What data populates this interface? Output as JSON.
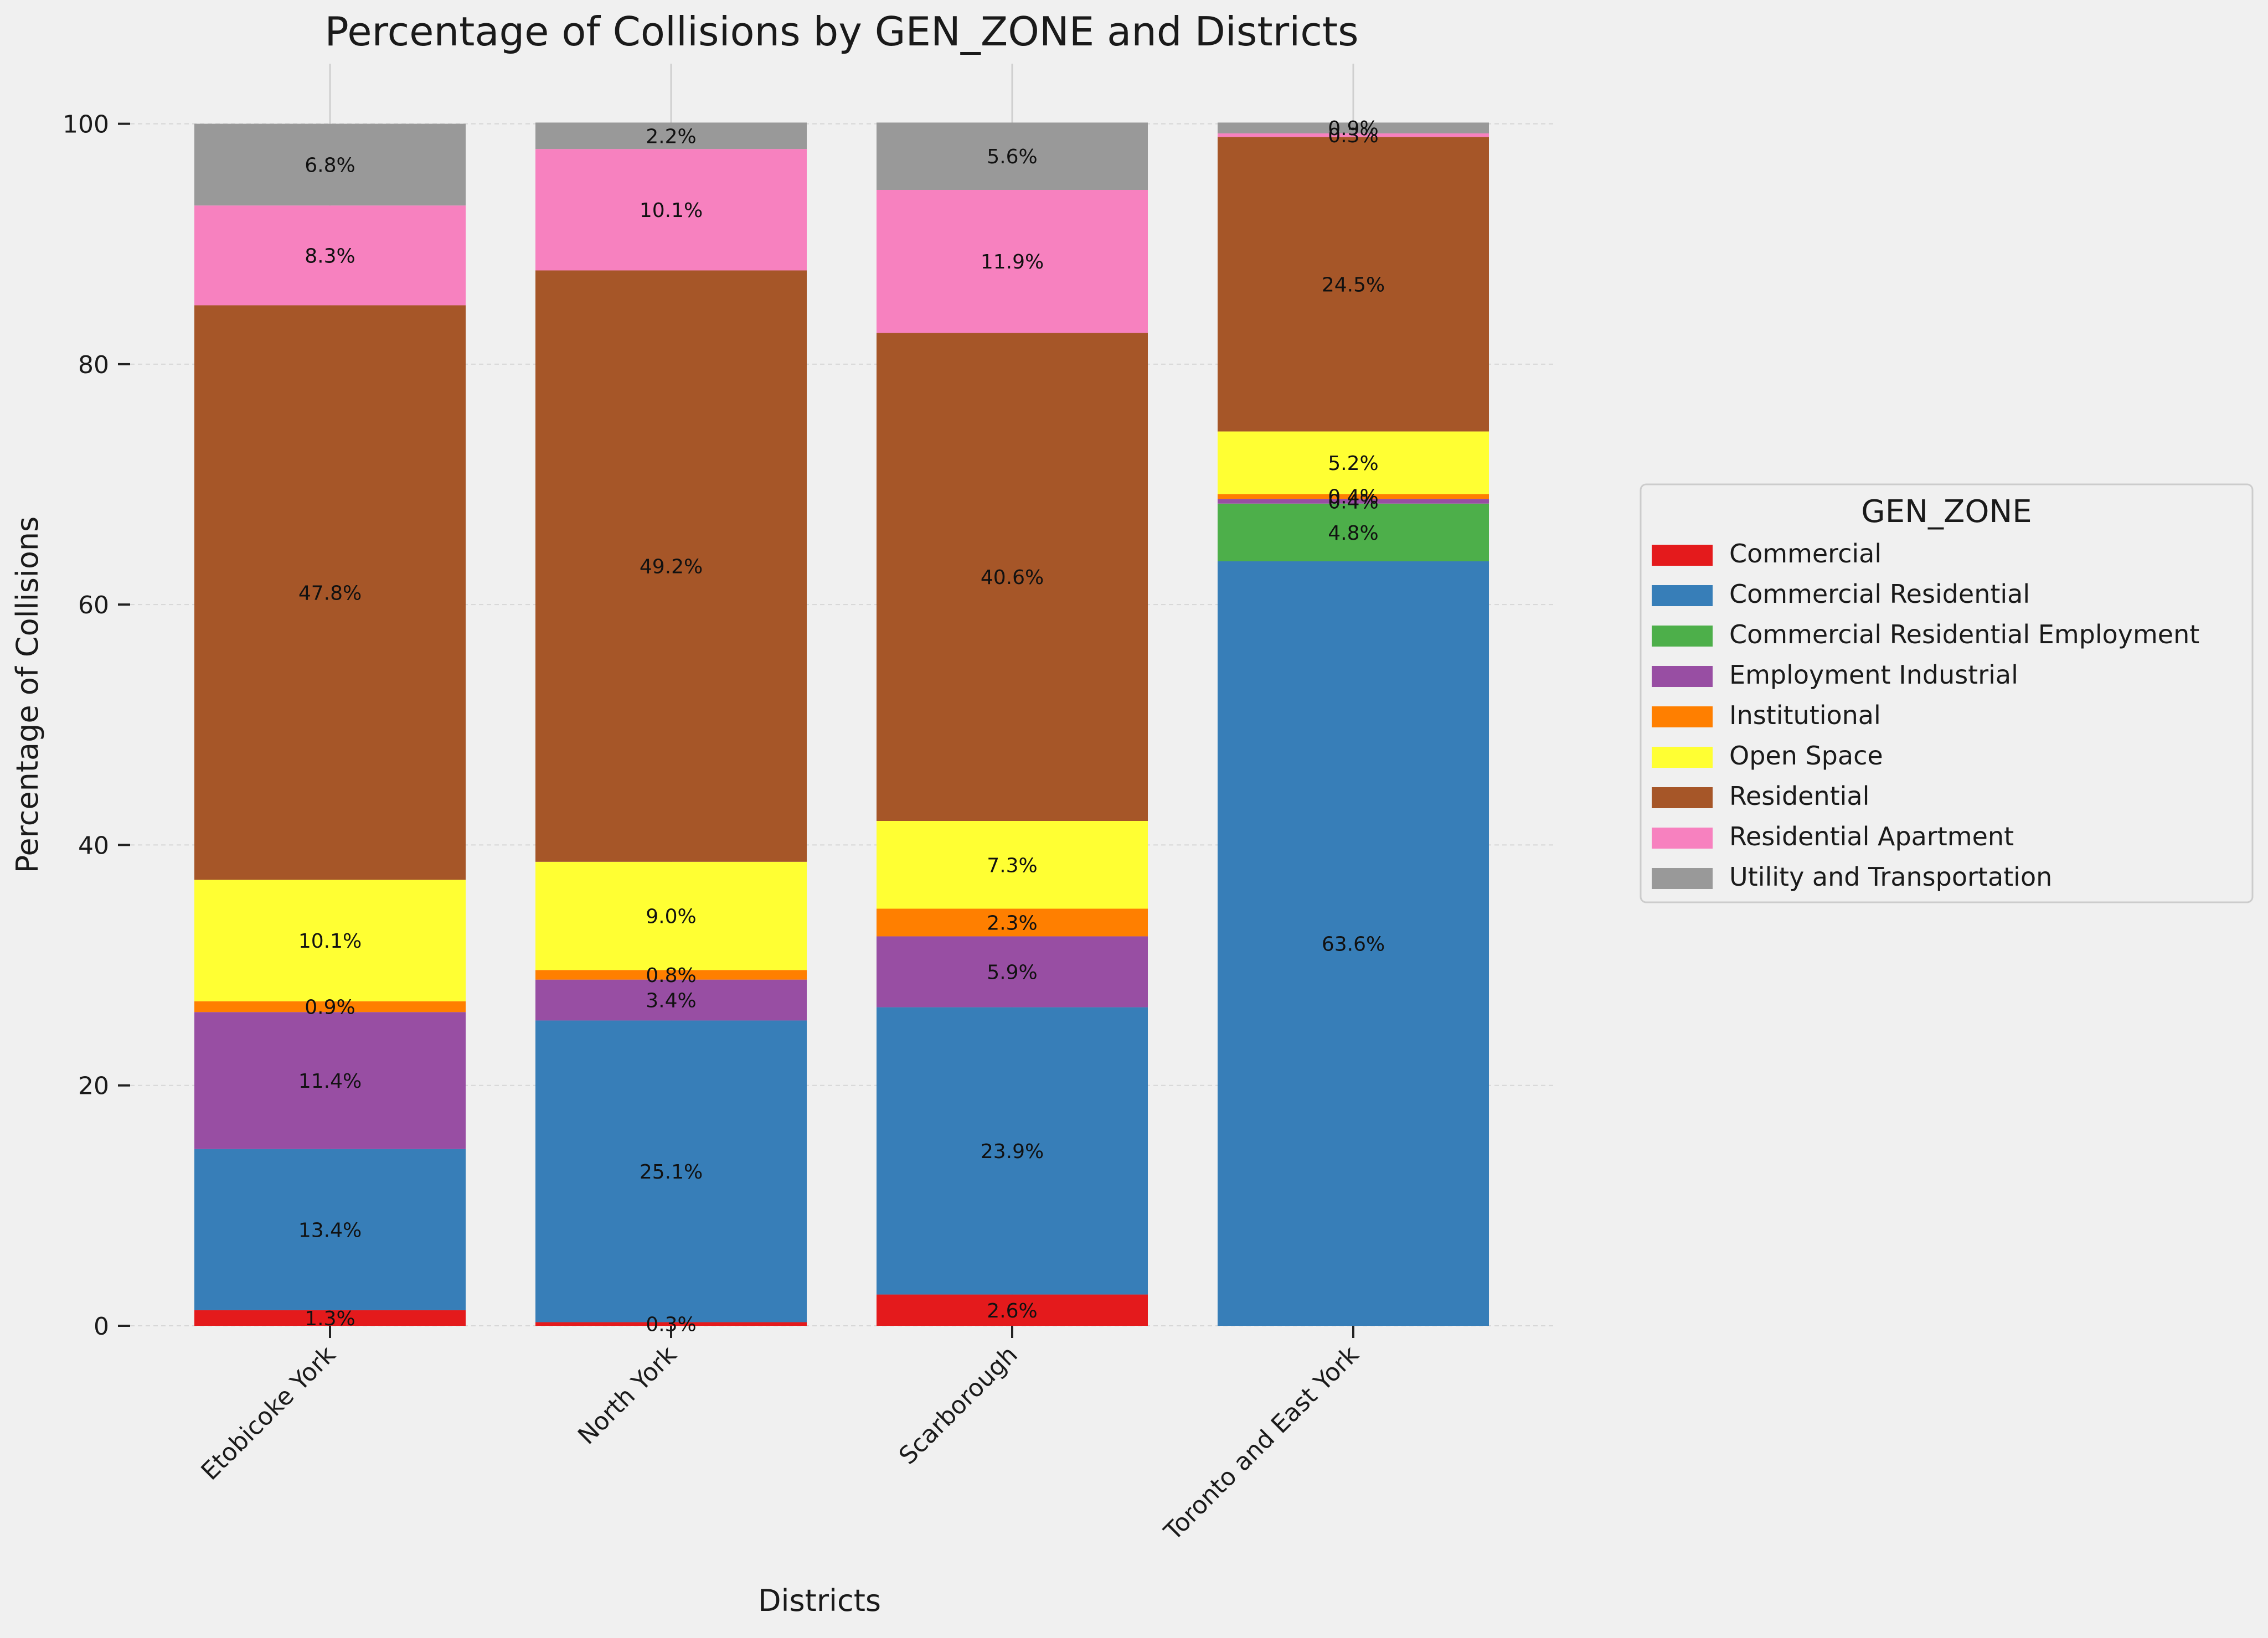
{
  "chart_data": {
    "type": "bar",
    "stacked": true,
    "title": "Percentage of Collisions by GEN_ZONE and Districts",
    "xlabel": "Districts",
    "ylabel": "Percentage of Collisions",
    "ylim": [
      0,
      105
    ],
    "yticks": [
      0,
      20,
      40,
      60,
      80,
      100
    ],
    "grid": true,
    "categories": [
      "Etobicoke York",
      "North York",
      "Scarborough",
      "Toronto and East York"
    ],
    "legend": {
      "title": "GEN_ZONE",
      "position": "right"
    },
    "series": [
      {
        "name": "Commercial",
        "color": "#e41a1c",
        "values": [
          1.3,
          0.3,
          2.6,
          0.0
        ],
        "labels": [
          "1.3%",
          "0.3%",
          "2.6%",
          ""
        ]
      },
      {
        "name": "Commercial Residential",
        "color": "#377eb8",
        "values": [
          13.4,
          25.1,
          23.9,
          63.6
        ],
        "labels": [
          "13.4%",
          "25.1%",
          "23.9%",
          "63.6%"
        ]
      },
      {
        "name": "Commercial Residential Employment",
        "color": "#4daf4a",
        "values": [
          0.0,
          0.0,
          0.0,
          4.8
        ],
        "labels": [
          "",
          "",
          "",
          "4.8%"
        ]
      },
      {
        "name": "Employment Industrial",
        "color": "#984ea3",
        "values": [
          11.4,
          3.4,
          5.9,
          0.4
        ],
        "labels": [
          "11.4%",
          "3.4%",
          "5.9%",
          "0.4%"
        ]
      },
      {
        "name": "Institutional",
        "color": "#ff7f00",
        "values": [
          0.9,
          0.8,
          2.3,
          0.4
        ],
        "labels": [
          "0.9%",
          "0.8%",
          "2.3%",
          "0.4%"
        ]
      },
      {
        "name": "Open Space",
        "color": "#ffff33",
        "values": [
          10.1,
          9.0,
          7.3,
          5.2
        ],
        "labels": [
          "10.1%",
          "9.0%",
          "7.3%",
          "5.2%"
        ]
      },
      {
        "name": "Residential",
        "color": "#a65628",
        "values": [
          47.8,
          49.2,
          40.6,
          24.5
        ],
        "labels": [
          "47.8%",
          "49.2%",
          "40.6%",
          "24.5%"
        ]
      },
      {
        "name": "Residential Apartment",
        "color": "#f781bf",
        "values": [
          8.3,
          10.1,
          11.9,
          0.3
        ],
        "labels": [
          "8.3%",
          "10.1%",
          "11.9%",
          "0.3%"
        ]
      },
      {
        "name": "Utility and Transportation",
        "color": "#999999",
        "values": [
          6.8,
          2.2,
          5.6,
          0.9
        ],
        "labels": [
          "6.8%",
          "2.2%",
          "5.6%",
          "0.9%"
        ]
      }
    ]
  }
}
